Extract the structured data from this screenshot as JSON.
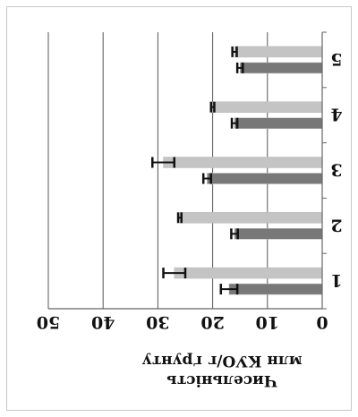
{
  "chart_data": {
    "type": "bar",
    "orientation": "horizontal",
    "flipped_180": true,
    "categories": [
      "1",
      "2",
      "3",
      "4",
      "5"
    ],
    "series": [
      {
        "color": "#787878",
        "values": [
          17,
          16,
          21,
          16,
          15
        ],
        "errors": [
          1.5,
          0.6,
          0.7,
          0.5,
          0.5
        ]
      },
      {
        "color": "#c4c4c4",
        "values": [
          27,
          26,
          29,
          20,
          16
        ],
        "errors": [
          2.0,
          0.3,
          2.0,
          0.3,
          0.4
        ]
      }
    ],
    "xlim": [
      0,
      50
    ],
    "ticks": [
      "0",
      "10",
      "20",
      "30",
      "40",
      "50"
    ],
    "ylabel": "Чисельність млн КУО/г ґрунту",
    "grid": true,
    "legend": "none"
  }
}
